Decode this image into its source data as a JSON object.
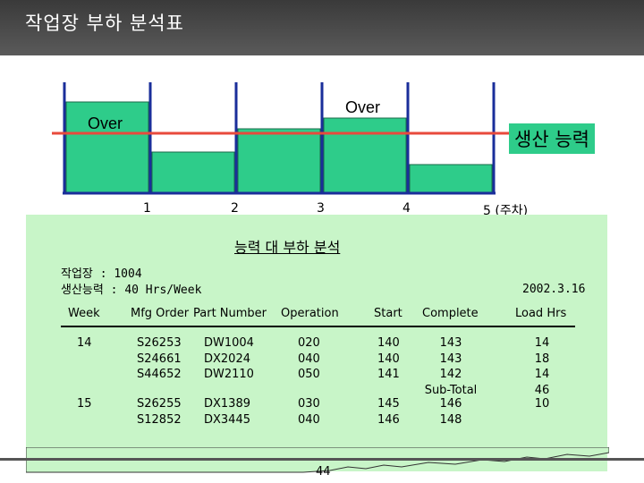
{
  "slide": {
    "title": "작업장 부하 분석표",
    "page_number": "44"
  },
  "chart": {
    "over_left": "Over",
    "over_right": "Over",
    "capacity_label": "생산 능력",
    "week_ticks": [
      "1",
      "2",
      "3",
      "4",
      "5 (주차)"
    ],
    "colors": {
      "bar": "#2ecc8a",
      "capacity_line": "#e84a3c",
      "axis": "#1a2e9a"
    }
  },
  "report": {
    "title": "능력 대 부하 분석",
    "workcenter": "작업장 : 1004",
    "capacity": "생산능력 : 40 Hrs/Week",
    "date": "2002.3.16",
    "headers": [
      "Week",
      "Mfg Order",
      "Part Number",
      "Operation",
      "Start",
      "Complete",
      "Load Hrs"
    ],
    "groups": [
      {
        "week": "14",
        "orders": "S26253\nS24661\nS44652",
        "parts": "DW1004\nDX2024\nDW2110",
        "operations": "020\n040\n050",
        "starts": "140\n140\n141",
        "completes": "143\n143\n142\nSub-Total",
        "loads": "14\n18\n14\n46"
      },
      {
        "week": "15",
        "orders": "S26255\nS12852",
        "parts": "DX1389\nDX3445",
        "operations": "030\n040",
        "starts": "145\n146",
        "completes": "146\n148",
        "loads": "10"
      }
    ]
  }
}
